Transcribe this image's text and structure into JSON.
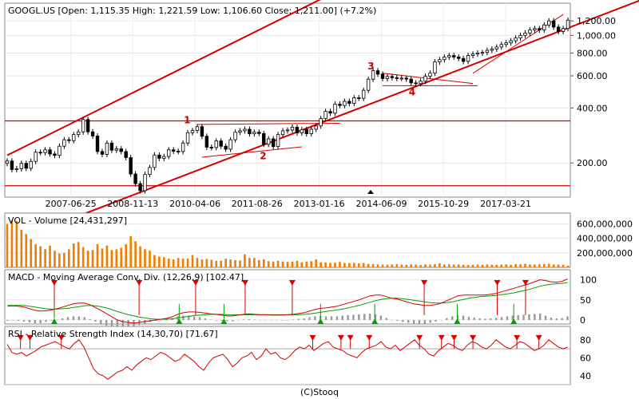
{
  "header": {
    "title": "GOOGL.US [Open: 1,115.35  High: 1,221.59  Low: 1,106.60  Close: 1,211.00] (+7.2%)"
  },
  "footer": {
    "credit": "(C)Stooq"
  },
  "chart_data": [
    {
      "type": "candlestick",
      "name": "price",
      "scale": "log",
      "ylim": [
        130,
        1500
      ],
      "y_ticks": [
        200,
        400,
        600,
        800,
        1000,
        1200
      ],
      "y_tick_labels": [
        "200.00",
        "400.00",
        "600.00",
        "800.00",
        "1,000.00",
        "1,200.00"
      ],
      "x_range": [
        "2006-01-01",
        "2018-09-01"
      ],
      "x_ticks": [
        "2007-06-25",
        "2008-11-13",
        "2010-04-06",
        "2011-08-26",
        "2013-01-16",
        "2014-06-09",
        "2015-10-29",
        "2017-03-21"
      ],
      "horizontal_lines": [
        340,
        150
      ],
      "annotations": [
        {
          "text": "1",
          "x": "2010-02-01",
          "y": 330
        },
        {
          "text": "2",
          "x": "2011-10-15",
          "y": 210
        },
        {
          "text": "3",
          "x": "2014-03-15",
          "y": 650
        },
        {
          "text": "4",
          "x": "2015-02-15",
          "y": 470
        }
      ],
      "closes": [
        205,
        184,
        186,
        199,
        187,
        204,
        229,
        228,
        236,
        224,
        220,
        247,
        268,
        265,
        286,
        296,
        346,
        296,
        281,
        231,
        223,
        257,
        235,
        239,
        231,
        214,
        174,
        154,
        141,
        173,
        189,
        221,
        212,
        217,
        236,
        232,
        231,
        257,
        293,
        301,
        316,
        280,
        244,
        243,
        264,
        247,
        238,
        268,
        295,
        300,
        306,
        289,
        295,
        290,
        253,
        271,
        246,
        286,
        300,
        303,
        314,
        292,
        305,
        289,
        306,
        319,
        350,
        383,
        375,
        420,
        413,
        435,
        424,
        455,
        452,
        500,
        575,
        640,
        613,
        580,
        595,
        586,
        581,
        583,
        576,
        549,
        544,
        561,
        597,
        621,
        715,
        736,
        760,
        775,
        761,
        747,
        720,
        776,
        790,
        800,
        806,
        828,
        841,
        863,
        891,
        910,
        934,
        967,
        1000,
        1030,
        1070,
        1090,
        1069,
        1140,
        1200,
        1110,
        1050,
        1090,
        1211
      ]
    },
    {
      "type": "bar",
      "name": "VOL - Volume [24,431,297]",
      "ylim": [
        0,
        750000000
      ],
      "y_tick_labels": [
        "200,000,000",
        "400,000,000",
        "600,000,000"
      ],
      "y_ticks": [
        200000000,
        400000000,
        600000000
      ],
      "values": [
        600000000,
        650000000,
        640000000,
        520000000,
        460000000,
        390000000,
        320000000,
        290000000,
        250000000,
        300000000,
        230000000,
        190000000,
        200000000,
        250000000,
        330000000,
        350000000,
        280000000,
        230000000,
        240000000,
        320000000,
        260000000,
        300000000,
        240000000,
        250000000,
        270000000,
        320000000,
        430000000,
        360000000,
        290000000,
        250000000,
        230000000,
        170000000,
        150000000,
        140000000,
        120000000,
        110000000,
        130000000,
        120000000,
        120000000,
        170000000,
        130000000,
        110000000,
        115000000,
        105000000,
        90000000,
        90000000,
        120000000,
        110000000,
        100000000,
        95000000,
        180000000,
        130000000,
        130000000,
        100000000,
        110000000,
        85000000,
        80000000,
        90000000,
        80000000,
        75000000,
        80000000,
        90000000,
        70000000,
        80000000,
        85000000,
        110000000,
        70000000,
        68000000,
        60000000,
        65000000,
        75000000,
        60000000,
        58000000,
        62000000,
        55000000,
        60000000,
        48000000,
        45000000,
        40000000,
        38000000,
        36000000,
        40000000,
        45000000,
        38000000,
        35000000,
        40000000,
        38000000,
        33000000,
        40000000,
        38000000,
        45000000,
        55000000,
        40000000,
        42000000,
        38000000,
        40000000,
        35000000,
        33000000,
        36000000,
        38000000,
        35000000,
        40000000,
        36000000,
        35000000,
        38000000,
        40000000,
        35000000,
        45000000,
        42000000,
        48000000,
        40000000,
        38000000,
        42000000,
        45000000,
        50000000,
        40000000,
        38000000,
        36000000,
        24431297
      ]
    },
    {
      "type": "line",
      "name": "MACD - Moving Average Conv. Div. (12,26,9) [102.47]",
      "ylim": [
        -10,
        125
      ],
      "y_ticks": [
        0,
        50,
        100
      ],
      "y_tick_labels": [
        "0",
        "50",
        "100"
      ],
      "macd": [
        34,
        35,
        34,
        32,
        28,
        24,
        22,
        23,
        25,
        28,
        32,
        36,
        40,
        42,
        42,
        38,
        31,
        24,
        16,
        8,
        0,
        -4,
        -6,
        -8,
        -6,
        -4,
        -2,
        0,
        2,
        4,
        8,
        14,
        18,
        20,
        20,
        19,
        17,
        15,
        14,
        12,
        10,
        10,
        12,
        14,
        15,
        14,
        13,
        13,
        12,
        12,
        12,
        13,
        14,
        16,
        18,
        22,
        26,
        29,
        30,
        32,
        34,
        38,
        42,
        46,
        50,
        55,
        60,
        62,
        62,
        58,
        54,
        52,
        48,
        44,
        40,
        38,
        36,
        36,
        38,
        42,
        48,
        54,
        60,
        62,
        62,
        62,
        62,
        62,
        64,
        66,
        70,
        74,
        78,
        82,
        86,
        90,
        95,
        100,
        98,
        95,
        94,
        96,
        102
      ],
      "signal": [
        36,
        36,
        36,
        36,
        34,
        32,
        30,
        28,
        27,
        27,
        28,
        29,
        31,
        33,
        35,
        36,
        35,
        33,
        30,
        26,
        21,
        17,
        13,
        10,
        7,
        5,
        3,
        2,
        2,
        2,
        3,
        5,
        7,
        9,
        11,
        12,
        13,
        14,
        14,
        14,
        13,
        13,
        13,
        13,
        13,
        13,
        13,
        13,
        13,
        13,
        13,
        13,
        13,
        13,
        14,
        15,
        17,
        19,
        21,
        23,
        25,
        27,
        30,
        33,
        36,
        40,
        44,
        48,
        51,
        53,
        54,
        54,
        53,
        51,
        49,
        47,
        45,
        43,
        42,
        42,
        43,
        45,
        48,
        51,
        54,
        56,
        58,
        59,
        60,
        61,
        63,
        65,
        67,
        70,
        73,
        76,
        80,
        84,
        87,
        89,
        90,
        91,
        93
      ],
      "sell_signals": [
        21,
        57,
        81,
        102,
        122,
        178,
        209,
        221
      ],
      "buy_signals": [
        21,
        74,
        93,
        134,
        157,
        192,
        216
      ]
    },
    {
      "type": "line",
      "name": "RSI - Relative Strength Index (14,30,70) [71.67]",
      "ylim": [
        30,
        95
      ],
      "y_ticks": [
        40,
        60,
        80
      ],
      "y_tick_labels": [
        "40",
        "60",
        "80"
      ],
      "levels": [
        30,
        70
      ],
      "values": [
        75,
        66,
        64,
        66,
        62,
        65,
        68,
        72,
        74,
        76,
        78,
        75,
        72,
        70,
        76,
        80,
        72,
        60,
        48,
        42,
        40,
        36,
        40,
        44,
        46,
        50,
        46,
        52,
        56,
        60,
        58,
        62,
        66,
        64,
        60,
        56,
        58,
        64,
        60,
        56,
        50,
        46,
        54,
        60,
        62,
        64,
        58,
        50,
        54,
        60,
        62,
        66,
        58,
        62,
        70,
        64,
        66,
        60,
        58,
        62,
        68,
        72,
        70,
        74,
        68,
        72,
        76,
        78,
        72,
        70,
        68,
        64,
        62,
        60,
        66,
        70,
        72,
        74,
        78,
        72,
        70,
        74,
        68,
        72,
        76,
        80,
        74,
        70,
        64,
        62,
        68,
        72,
        76,
        74,
        70,
        68,
        74,
        78,
        76,
        72,
        70,
        74,
        80,
        76,
        72,
        70,
        74,
        78,
        76,
        72,
        68,
        70,
        74,
        80,
        76,
        72,
        70,
        72
      ],
      "overbought_markers": [
        5,
        8,
        18,
        98,
        107,
        110,
        116,
        132,
        139,
        143,
        149,
        163,
        170
      ]
    }
  ]
}
